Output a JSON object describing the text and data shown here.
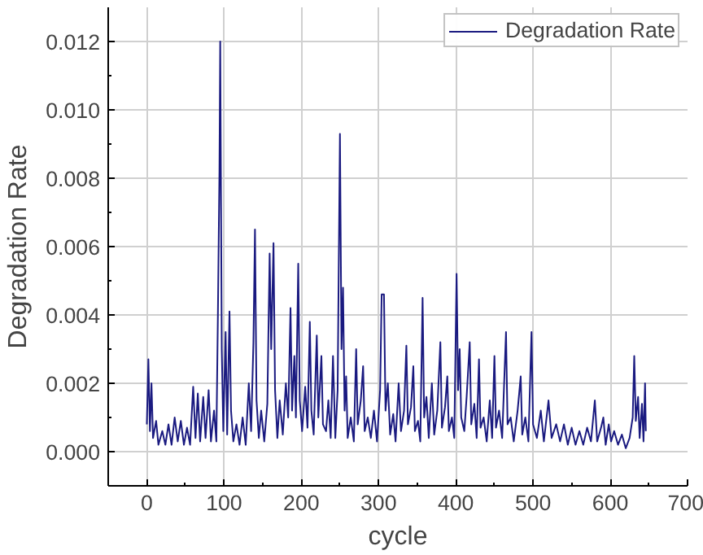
{
  "chart_data": {
    "type": "line",
    "xlabel": "cycle",
    "ylabel": "Degradation Rate",
    "xlim": [
      -50,
      700
    ],
    "xticks": [
      0,
      100,
      200,
      300,
      400,
      500,
      600,
      700
    ],
    "ylim": [
      -0.001,
      0.013
    ],
    "yticks": [
      {
        "value": 0,
        "label": "0.000"
      },
      {
        "value": 0.002,
        "label": "0.002"
      },
      {
        "value": 0.004,
        "label": "0.004"
      },
      {
        "value": 0.006,
        "label": "0.006"
      },
      {
        "value": 0.008,
        "label": "0.008"
      },
      {
        "value": 0.01,
        "label": "0.010"
      },
      {
        "value": 0.012,
        "label": "0.012"
      }
    ],
    "grid": true,
    "legend": "top right",
    "marker": "none",
    "line_style": "solid",
    "series": [
      {
        "name": "Degradation Rate",
        "color": "#1a1a80",
        "x": [
          0,
          2,
          4,
          6,
          8,
          12,
          15,
          20,
          24,
          28,
          32,
          36,
          40,
          44,
          48,
          52,
          56,
          60,
          63,
          66,
          69,
          73,
          76,
          80,
          83,
          87,
          90,
          92,
          94,
          95,
          97,
          99,
          102,
          104,
          107,
          109,
          112,
          116,
          120,
          124,
          128,
          132,
          135,
          138,
          140,
          142,
          145,
          148,
          152,
          156,
          159,
          161,
          164,
          166,
          169,
          172,
          176,
          180,
          183,
          186,
          188,
          191,
          193,
          196,
          198,
          201,
          205,
          208,
          211,
          213,
          216,
          220,
          222,
          226,
          228,
          232,
          235,
          238,
          241,
          244,
          247,
          250,
          252,
          254,
          256,
          258,
          260,
          264,
          268,
          271,
          273,
          277,
          280,
          282,
          286,
          290,
          294,
          298,
          302,
          304,
          307,
          309,
          312,
          315,
          319,
          322,
          326,
          329,
          333,
          336,
          338,
          342,
          345,
          347,
          351,
          354,
          357,
          359,
          362,
          365,
          369,
          372,
          376,
          380,
          382,
          386,
          389,
          391,
          395,
          398,
          401,
          403,
          405,
          407,
          411,
          414,
          418,
          420,
          424,
          427,
          430,
          432,
          436,
          440,
          444,
          447,
          450,
          452,
          456,
          460,
          465,
          467,
          471,
          475,
          480,
          484,
          486,
          490,
          494,
          498,
          500,
          505,
          510,
          514,
          520,
          524,
          530,
          535,
          540,
          545,
          550,
          555,
          560,
          565,
          570,
          575,
          580,
          583,
          588,
          591,
          594,
          598,
          601,
          605,
          610,
          615,
          620,
          625,
          629,
          631,
          633,
          636,
          638,
          641,
          643,
          645,
          646
        ],
        "values": [
          0.0008,
          0.0027,
          0.0006,
          0.002,
          0.0004,
          0.0009,
          0.0002,
          0.0006,
          0.0002,
          0.0008,
          0.0002,
          0.001,
          0.0003,
          0.0009,
          0.0002,
          0.0007,
          0.0002,
          0.0019,
          0.0004,
          0.0017,
          0.0003,
          0.0016,
          0.0004,
          0.0018,
          0.0003,
          0.0012,
          0.0003,
          0.004,
          0.0082,
          0.012,
          0.003,
          0.0006,
          0.0035,
          0.0005,
          0.0041,
          0.0012,
          0.0003,
          0.0008,
          0.0002,
          0.001,
          0.0002,
          0.002,
          0.0006,
          0.0032,
          0.0065,
          0.0015,
          0.0004,
          0.0012,
          0.0003,
          0.0014,
          0.0058,
          0.003,
          0.0061,
          0.0018,
          0.0004,
          0.0015,
          0.0005,
          0.002,
          0.001,
          0.0042,
          0.0012,
          0.0028,
          0.001,
          0.0055,
          0.0015,
          0.0006,
          0.0019,
          0.0007,
          0.0038,
          0.0012,
          0.0005,
          0.0034,
          0.001,
          0.0028,
          0.0008,
          0.0006,
          0.0015,
          0.0004,
          0.0028,
          0.0004,
          0.0018,
          0.0093,
          0.003,
          0.0048,
          0.0012,
          0.0022,
          0.0004,
          0.001,
          0.0003,
          0.003,
          0.0008,
          0.0015,
          0.0025,
          0.0006,
          0.001,
          0.0004,
          0.0012,
          0.0003,
          0.0018,
          0.0046,
          0.0046,
          0.0012,
          0.002,
          0.0005,
          0.0011,
          0.0003,
          0.002,
          0.0006,
          0.0012,
          0.0031,
          0.0008,
          0.0013,
          0.0025,
          0.0006,
          0.0009,
          0.0003,
          0.0045,
          0.001,
          0.0016,
          0.0004,
          0.002,
          0.0005,
          0.0012,
          0.0032,
          0.0007,
          0.0013,
          0.0022,
          0.0006,
          0.001,
          0.0004,
          0.0052,
          0.0018,
          0.003,
          0.001,
          0.0006,
          0.0016,
          0.0032,
          0.0008,
          0.0014,
          0.0004,
          0.0027,
          0.0007,
          0.001,
          0.0003,
          0.0015,
          0.0004,
          0.0028,
          0.0007,
          0.0012,
          0.0004,
          0.0035,
          0.0008,
          0.001,
          0.0003,
          0.0012,
          0.0022,
          0.0005,
          0.001,
          0.0003,
          0.0035,
          0.0008,
          0.0004,
          0.0012,
          0.0003,
          0.0015,
          0.0004,
          0.0008,
          0.0003,
          0.0008,
          0.0002,
          0.0007,
          0.0002,
          0.0006,
          0.0002,
          0.0007,
          0.0003,
          0.0015,
          0.0003,
          0.0007,
          0.001,
          0.0002,
          0.0008,
          0.0003,
          0.0006,
          0.0002,
          0.0005,
          0.0001,
          0.0004,
          0.001,
          0.0028,
          0.0009,
          0.0016,
          0.0004,
          0.0014,
          0.0003,
          0.002,
          0.0006
        ]
      }
    ]
  }
}
